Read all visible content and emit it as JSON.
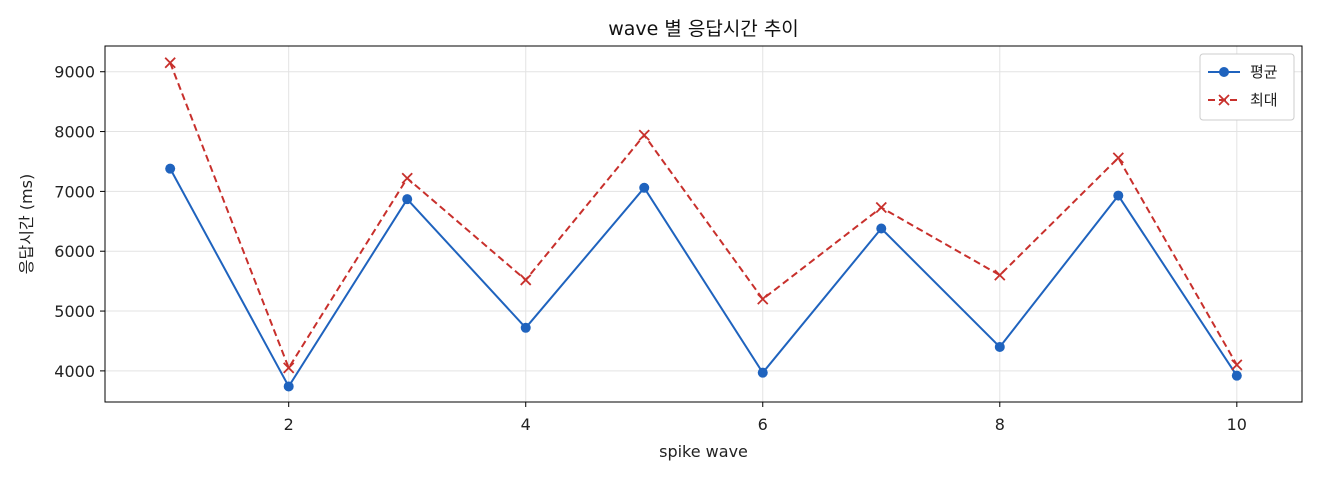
{
  "chart_data": {
    "type": "line",
    "title": "wave 별 응답시간 추이",
    "xlabel": "spike wave",
    "ylabel": "응답시간 (ms)",
    "x": [
      1,
      2,
      3,
      4,
      5,
      6,
      7,
      8,
      9,
      10
    ],
    "xlim": [
      0.45,
      10.55
    ],
    "ylim": [
      3480,
      9430
    ],
    "xticks": [
      2,
      4,
      6,
      8,
      10
    ],
    "yticks": [
      4000,
      5000,
      6000,
      7000,
      8000,
      9000
    ],
    "grid": true,
    "legend_position": "top-right",
    "series": [
      {
        "name": "평균",
        "values": [
          7380,
          3740,
          6870,
          4720,
          7060,
          3970,
          6380,
          4400,
          6930,
          3920
        ],
        "color": "#1f63be",
        "line_style": "solid",
        "marker": "circle"
      },
      {
        "name": "최대",
        "values": [
          9150,
          4050,
          7220,
          5520,
          7940,
          5200,
          6730,
          5600,
          7560,
          4100
        ],
        "color": "#c8302c",
        "line_style": "dashed",
        "marker": "x"
      }
    ]
  }
}
